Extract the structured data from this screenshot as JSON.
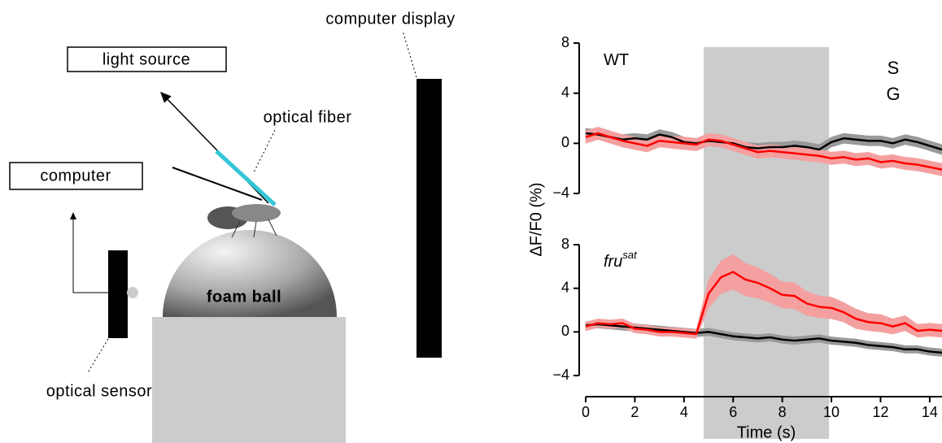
{
  "diagram": {
    "labels": {
      "light_source": "light source",
      "optical_fiber": "optical fiber",
      "computer": "computer",
      "computer_display": "computer display",
      "foam_ball": "foam ball",
      "optical_sensor": "optical sensor"
    }
  },
  "chart_data": [
    {
      "type": "line",
      "panel_label": "WT",
      "ylabel": "ΔF/F0 (%)",
      "x": [
        0,
        0.5,
        1,
        1.5,
        2,
        2.5,
        3,
        3.5,
        4,
        4.5,
        5,
        5.5,
        6,
        6.5,
        7,
        7.5,
        8,
        8.5,
        9,
        9.5,
        10,
        10.5,
        11,
        11.5,
        12,
        12.5,
        13,
        13.5,
        14,
        14.5
      ],
      "xlim": [
        0,
        14.5
      ],
      "ylim": [
        -4,
        8
      ],
      "yticks": [
        {
          "value": -4,
          "label": "−4"
        },
        0,
        4,
        8
      ],
      "shaded_span": [
        4.8,
        9.9
      ],
      "legend": true,
      "series": [
        {
          "name": "S",
          "color": "#000000",
          "band_color": "#999999",
          "values": [
            0.8,
            0.7,
            0.5,
            0.3,
            0.4,
            0.3,
            0.7,
            0.5,
            0.1,
            0,
            0.2,
            0.1,
            0,
            -0.3,
            -0.4,
            -0.3,
            -0.3,
            -0.2,
            -0.3,
            -0.5,
            0.1,
            0.4,
            0.3,
            0.2,
            0.2,
            0,
            0.3,
            0.1,
            -0.2,
            -0.5
          ],
          "errors": [
            0.4,
            0.4,
            0.4,
            0.4,
            0.4,
            0.4,
            0.4,
            0.4,
            0.4,
            0.4,
            0.4,
            0.4,
            0.4,
            0.4,
            0.4,
            0.4,
            0.4,
            0.4,
            0.4,
            0.4,
            0.4,
            0.4,
            0.4,
            0.4,
            0.4,
            0.4,
            0.4,
            0.4,
            0.4,
            0.4
          ]
        },
        {
          "name": "G",
          "color": "#ff0000",
          "band_color": "#f4a0a0",
          "values": [
            0.5,
            0.8,
            0.5,
            0.2,
            0,
            -0.2,
            0.2,
            0.1,
            0,
            -0.1,
            0.3,
            0.2,
            -0.1,
            -0.4,
            -0.7,
            -0.6,
            -0.7,
            -0.8,
            -0.9,
            -1,
            -1.2,
            -1.1,
            -1.3,
            -1.2,
            -1.5,
            -1.4,
            -1.6,
            -1.7,
            -1.9,
            -2.1
          ],
          "errors": [
            0.5,
            0.5,
            0.5,
            0.5,
            0.5,
            0.5,
            0.5,
            0.5,
            0.5,
            0.5,
            0.5,
            0.5,
            0.5,
            0.5,
            0.5,
            0.5,
            0.5,
            0.5,
            0.5,
            0.5,
            0.5,
            0.5,
            0.5,
            0.5,
            0.5,
            0.5,
            0.5,
            0.5,
            0.5,
            0.5
          ]
        }
      ]
    },
    {
      "type": "line",
      "panel_label": "fru",
      "panel_label_sup": "sat",
      "xlabel": "Time (s)",
      "x": [
        0,
        0.5,
        1,
        1.5,
        2,
        2.5,
        3,
        3.5,
        4,
        4.5,
        5,
        5.5,
        6,
        6.5,
        7,
        7.5,
        8,
        8.5,
        9,
        9.5,
        10,
        10.5,
        11,
        11.5,
        12,
        12.5,
        13,
        13.5,
        14,
        14.5
      ],
      "xlim": [
        0,
        14.5
      ],
      "xticks": [
        0,
        2,
        4,
        6,
        8,
        10,
        12,
        14
      ],
      "ylim": [
        -4,
        8
      ],
      "yticks": [
        {
          "value": -4,
          "label": "−4"
        },
        0,
        4,
        8
      ],
      "shaded_span": [
        4.8,
        9.9
      ],
      "series": [
        {
          "name": "S",
          "color": "#000000",
          "band_color": "#999999",
          "values": [
            0.6,
            0.7,
            0.6,
            0.5,
            0.4,
            0.3,
            0.2,
            0.1,
            0,
            -0.1,
            0,
            -0.2,
            -0.4,
            -0.5,
            -0.6,
            -0.5,
            -0.7,
            -0.8,
            -0.7,
            -0.6,
            -0.8,
            -0.9,
            -1,
            -1.2,
            -1.3,
            -1.4,
            -1.6,
            -1.6,
            -1.8,
            -1.9
          ],
          "errors": [
            0.35,
            0.35,
            0.35,
            0.35,
            0.35,
            0.35,
            0.35,
            0.35,
            0.35,
            0.35,
            0.35,
            0.35,
            0.35,
            0.35,
            0.35,
            0.35,
            0.35,
            0.35,
            0.35,
            0.35,
            0.35,
            0.35,
            0.35,
            0.35,
            0.35,
            0.35,
            0.35,
            0.35,
            0.35,
            0.35
          ]
        },
        {
          "name": "G",
          "color": "#ff0000",
          "band_color": "#f4a0a0",
          "values": [
            0.5,
            0.8,
            0.7,
            0.8,
            0.3,
            0.2,
            0,
            0,
            -0.1,
            -0.2,
            3.5,
            5,
            5.5,
            4.8,
            4.5,
            4,
            3.4,
            3.3,
            2.6,
            2.3,
            2.2,
            1.8,
            1.2,
            0.9,
            0.8,
            0.5,
            0.8,
            0.1,
            0.2,
            0.1
          ],
          "errors": [
            0.4,
            0.4,
            0.4,
            0.4,
            0.4,
            0.4,
            0.4,
            0.4,
            0.4,
            0.4,
            1.3,
            1.5,
            1.6,
            1.5,
            1.4,
            1.3,
            1.2,
            1.2,
            1.1,
            1,
            1,
            0.9,
            0.9,
            0.8,
            0.8,
            0.7,
            0.7,
            0.6,
            0.6,
            0.6
          ]
        }
      ]
    }
  ]
}
